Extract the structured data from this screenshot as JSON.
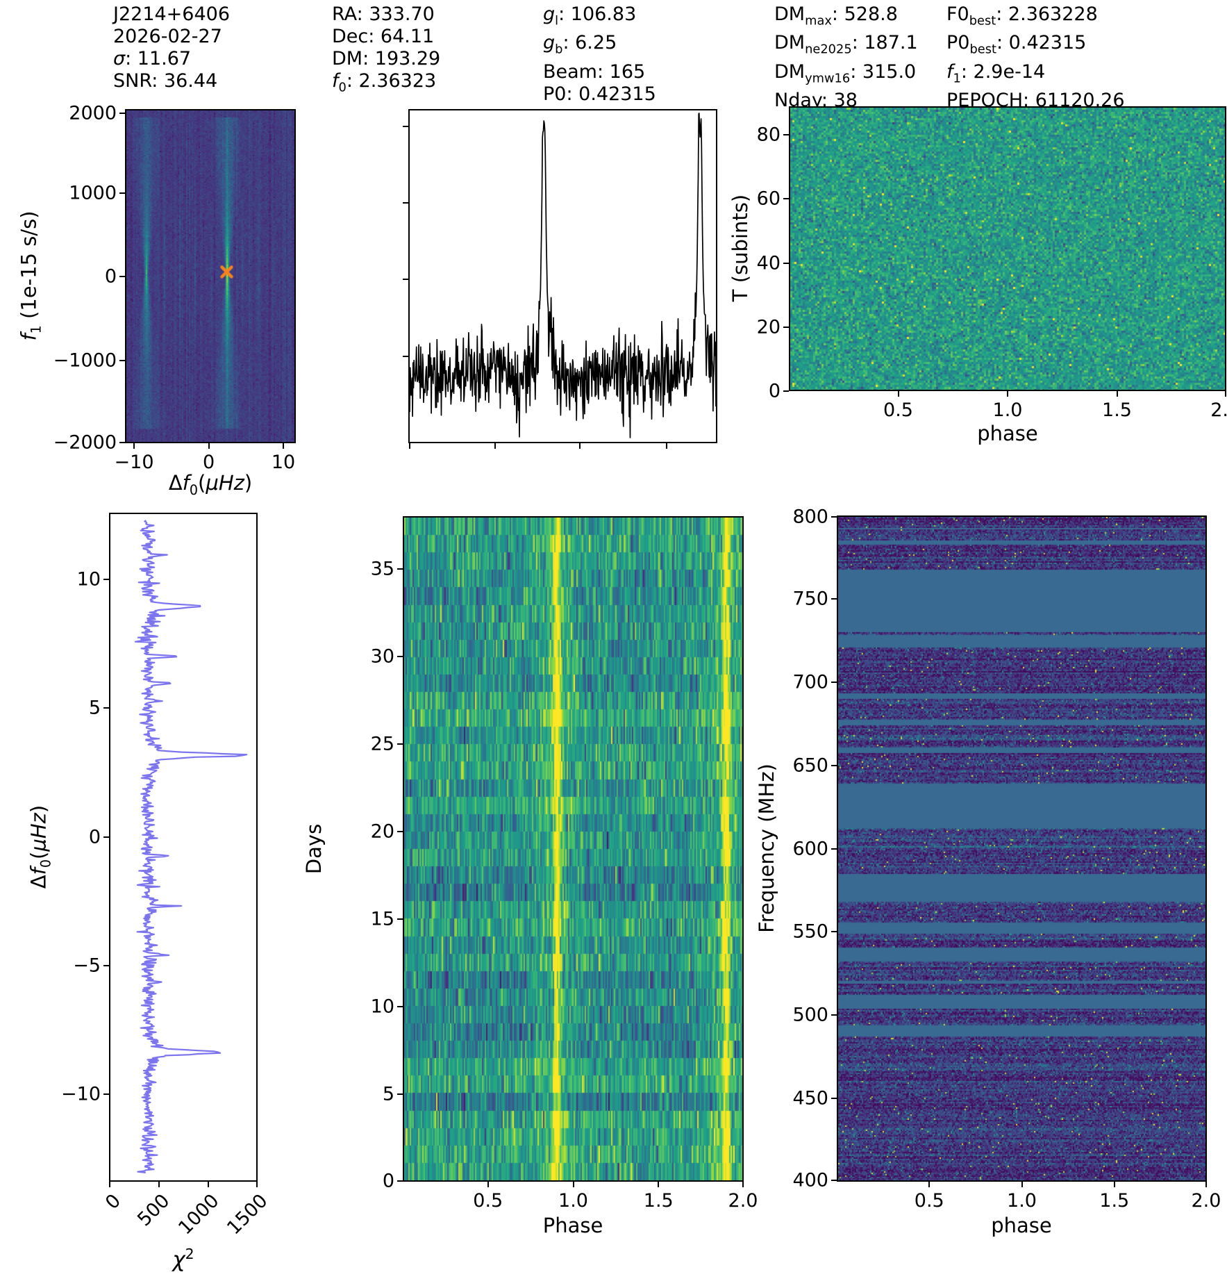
{
  "header": {
    "columns": [
      {
        "lines": [
          "J2214+6406",
          "2026-02-27",
          "*σ*: 11.67",
          "SNR: 36.44"
        ]
      },
      {
        "lines": [
          "RA: 333.70",
          "Dec: 64.11",
          "DM: 193.29",
          "*f*_{0}: 2.36323"
        ]
      },
      {
        "lines": [
          "*g*_{l}: 106.83",
          "*g*_{b}: 6.25",
          "Beam: 165",
          "P0: 0.42315"
        ]
      },
      {
        "lines": [
          "DM_{max}: 528.8",
          "DM_{ne2025}: 187.1",
          "DM_{ymw16}: 315.0",
          "Nday: 38"
        ]
      },
      {
        "lines": [
          "F0_{best}: 2.363228",
          "P0_{best}: 0.42315",
          "*f*_{1}: 2.9e-14",
          "PEPOCH: 61120.26"
        ]
      }
    ]
  },
  "colors": {
    "background": "#ffffff",
    "flat_masked_band": "#396b92",
    "marker_orange": "#f5821e",
    "chisq_line": "#7b74ee",
    "profile_line": "#000000",
    "axis": "#000000"
  },
  "palette": {
    "viridis": [
      [
        0,
        "#440154"
      ],
      [
        0.14,
        "#46327e"
      ],
      [
        0.29,
        "#365c8d"
      ],
      [
        0.43,
        "#277f8e"
      ],
      [
        0.57,
        "#1fa187"
      ],
      [
        0.71,
        "#49c16d"
      ],
      [
        0.86,
        "#a0da39"
      ],
      [
        1,
        "#fde725"
      ]
    ]
  },
  "chart_data": [
    {
      "id": "ffdot",
      "type": "heatmap",
      "ylabel": "*f*_{1} (1e-15 s/s)",
      "xlabel": "Δ*f*_{0}(*μHz*)",
      "x_range": [
        -12.3,
        11.7
      ],
      "y_range": [
        -2000,
        2040
      ],
      "xticks": [
        {
          "l": "−10",
          "f": 0.053
        },
        {
          "l": "0",
          "f": 0.49
        },
        {
          "l": "10",
          "f": 0.927
        }
      ],
      "yticks": [
        {
          "l": "2000",
          "f": 0.012
        },
        {
          "l": "1000",
          "f": 0.252
        },
        {
          "l": "0",
          "f": 0.5
        },
        {
          "l": "−1000",
          "f": 0.752
        },
        {
          "l": "−2000",
          "f": 0.997
        }
      ],
      "noise": {
        "mean": 0.175,
        "sd": 0.028,
        "col_sd": 0.018
      },
      "bowties": [
        {
          "fx": 0.115,
          "fy": 0.49,
          "amp": 0.42
        },
        {
          "fx": 0.597,
          "fy": 0.49,
          "amp": 0.58
        }
      ],
      "streaks": [
        {
          "fx": 0.225,
          "amp": 0.07
        },
        {
          "fx": 0.315,
          "amp": 0.06
        },
        {
          "fx": 0.405,
          "amp": 0.08
        },
        {
          "fx": 0.5,
          "amp": 0.06
        },
        {
          "fx": 0.685,
          "amp": 0.08
        },
        {
          "fx": 0.78,
          "amp": 0.06
        },
        {
          "fx": 0.875,
          "amp": 0.07
        }
      ],
      "marker": {
        "fx": 0.597,
        "fy": 0.487,
        "df0_uhz": 3.2,
        "f1_1e15": 30
      },
      "seed": 11
    },
    {
      "id": "profile",
      "type": "line",
      "baseline": 0.795,
      "noise_sd": 0.058,
      "peaks": [
        {
          "phase": 0.9,
          "fx": 0.438,
          "amp": 0.99
        },
        {
          "phase": 1.9,
          "fx": 0.948,
          "amp": 1.03
        }
      ],
      "xticks": [
        {
          "l": "",
          "f": 0.005
        },
        {
          "l": "",
          "f": 0.28
        },
        {
          "l": "",
          "f": 0.555
        },
        {
          "l": "",
          "f": 0.835
        }
      ],
      "yticks": [
        {
          "l": "",
          "f": 0.052
        },
        {
          "l": "",
          "f": 0.281
        },
        {
          "l": "",
          "f": 0.51
        },
        {
          "l": "",
          "f": 0.74
        }
      ],
      "seed": 23
    },
    {
      "id": "subints",
      "type": "heatmap",
      "ylabel": "T (subints)",
      "xlabel": "phase",
      "x_range": [
        0,
        2
      ],
      "y_range": [
        0,
        89
      ],
      "rows": 90,
      "xticks": [
        {
          "l": "0.5",
          "f": 0.25
        },
        {
          "l": "1.0",
          "f": 0.5
        },
        {
          "l": "1.5",
          "f": 0.75
        },
        {
          "l": "2.0",
          "f": 0.998
        }
      ],
      "yticks": [
        {
          "l": "80",
          "f": 0.1
        },
        {
          "l": "60",
          "f": 0.325
        },
        {
          "l": "40",
          "f": 0.551
        },
        {
          "l": "20",
          "f": 0.776
        },
        {
          "l": "0",
          "f": 0.999
        }
      ],
      "noise": {
        "mean": 0.55,
        "sd": 0.1
      },
      "seed": 37
    },
    {
      "id": "chisq",
      "type": "line",
      "xlabel": "*χ*^{2}",
      "ylabel": "Δ*f*_{0}(*μHz*)",
      "x_range": [
        0,
        1510
      ],
      "y_range": [
        12.6,
        -13.4
      ],
      "baseline_chi2": 392,
      "noise_sd": 40,
      "spikes": [
        {
          "df0": 11.0,
          "chi2": 180
        },
        {
          "df0": 9.0,
          "chi2": 480
        },
        {
          "df0": 7.05,
          "chi2": 390
        },
        {
          "df0": 6.0,
          "chi2": 230
        },
        {
          "df0": 5.3,
          "chi2": 120
        },
        {
          "df0": 3.2,
          "chi2": 880
        },
        {
          "df0": -0.75,
          "chi2": 210
        },
        {
          "df0": -2.7,
          "chi2": 300
        },
        {
          "df0": -4.6,
          "chi2": 230
        },
        {
          "df0": -5.65,
          "chi2": 140
        },
        {
          "df0": -8.4,
          "chi2": 690
        }
      ],
      "xticks": [
        {
          "l": "0",
          "f": 0.004
        },
        {
          "l": "500",
          "f": 0.336
        },
        {
          "l": "1000",
          "f": 0.668
        },
        {
          "l": "1500",
          "f": 0.996
        }
      ],
      "yticks": [
        {
          "l": "10",
          "f": 0.1
        },
        {
          "l": "5",
          "f": 0.292
        },
        {
          "l": "0",
          "f": 0.485
        },
        {
          "l": "−5",
          "f": 0.677
        },
        {
          "l": "−10",
          "f": 0.869
        }
      ],
      "rot_xticklabels": true,
      "seed": 41
    },
    {
      "id": "days",
      "type": "heatmap",
      "ylabel": "Days",
      "xlabel": "Phase",
      "x_range": [
        0,
        2
      ],
      "y_range": [
        0,
        38
      ],
      "rows": 38,
      "stripes": [
        {
          "phase": 0.9,
          "fx": 0.45
        },
        {
          "phase": 1.9,
          "fx": 0.95
        }
      ],
      "xticks": [
        {
          "l": "0.5",
          "f": 0.25
        },
        {
          "l": "1.0",
          "f": 0.5
        },
        {
          "l": "1.5",
          "f": 0.75
        },
        {
          "l": "2.0",
          "f": 0.998
        }
      ],
      "yticks": [
        {
          "l": "35",
          "f": 0.079
        },
        {
          "l": "30",
          "f": 0.211
        },
        {
          "l": "25",
          "f": 0.342
        },
        {
          "l": "20",
          "f": 0.474
        },
        {
          "l": "15",
          "f": 0.605
        },
        {
          "l": "10",
          "f": 0.737
        },
        {
          "l": "5",
          "f": 0.868
        },
        {
          "l": "0",
          "f": 0.999
        }
      ],
      "noise": {
        "mean": 0.5,
        "sd": 0.13
      },
      "seed": 53
    },
    {
      "id": "freq",
      "type": "heatmap",
      "ylabel": "Frequency (MHz)",
      "xlabel": "phase",
      "x_range": [
        0,
        2
      ],
      "y_range": [
        400,
        800
      ],
      "noisy_bands_mhz": [
        [
          800,
          794
        ],
        [
          793,
          786
        ],
        [
          784,
          769
        ],
        [
          731,
          729
        ],
        [
          722,
          694
        ],
        [
          691,
          678
        ],
        [
          675,
          661
        ],
        [
          658,
          640
        ],
        [
          613,
          585
        ],
        [
          568,
          556
        ],
        [
          549,
          541
        ],
        [
          532,
          521
        ],
        [
          519,
          512
        ],
        [
          504,
          494
        ],
        [
          487,
          400
        ]
      ],
      "xticks": [
        {
          "l": "0.5",
          "f": 0.25
        },
        {
          "l": "1.0",
          "f": 0.5
        },
        {
          "l": "1.5",
          "f": 0.75
        },
        {
          "l": "2.0",
          "f": 0.998
        }
      ],
      "yticks": [
        {
          "l": "800",
          "f": 0.002
        },
        {
          "l": "750",
          "f": 0.125
        },
        {
          "l": "700",
          "f": 0.25
        },
        {
          "l": "650",
          "f": 0.375
        },
        {
          "l": "600",
          "f": 0.5
        },
        {
          "l": "550",
          "f": 0.625
        },
        {
          "l": "500",
          "f": 0.75
        },
        {
          "l": "450",
          "f": 0.875
        },
        {
          "l": "400",
          "f": 0.998
        }
      ],
      "noise": {
        "mean": 0.17,
        "sd": 0.09
      },
      "seed": 67
    }
  ]
}
